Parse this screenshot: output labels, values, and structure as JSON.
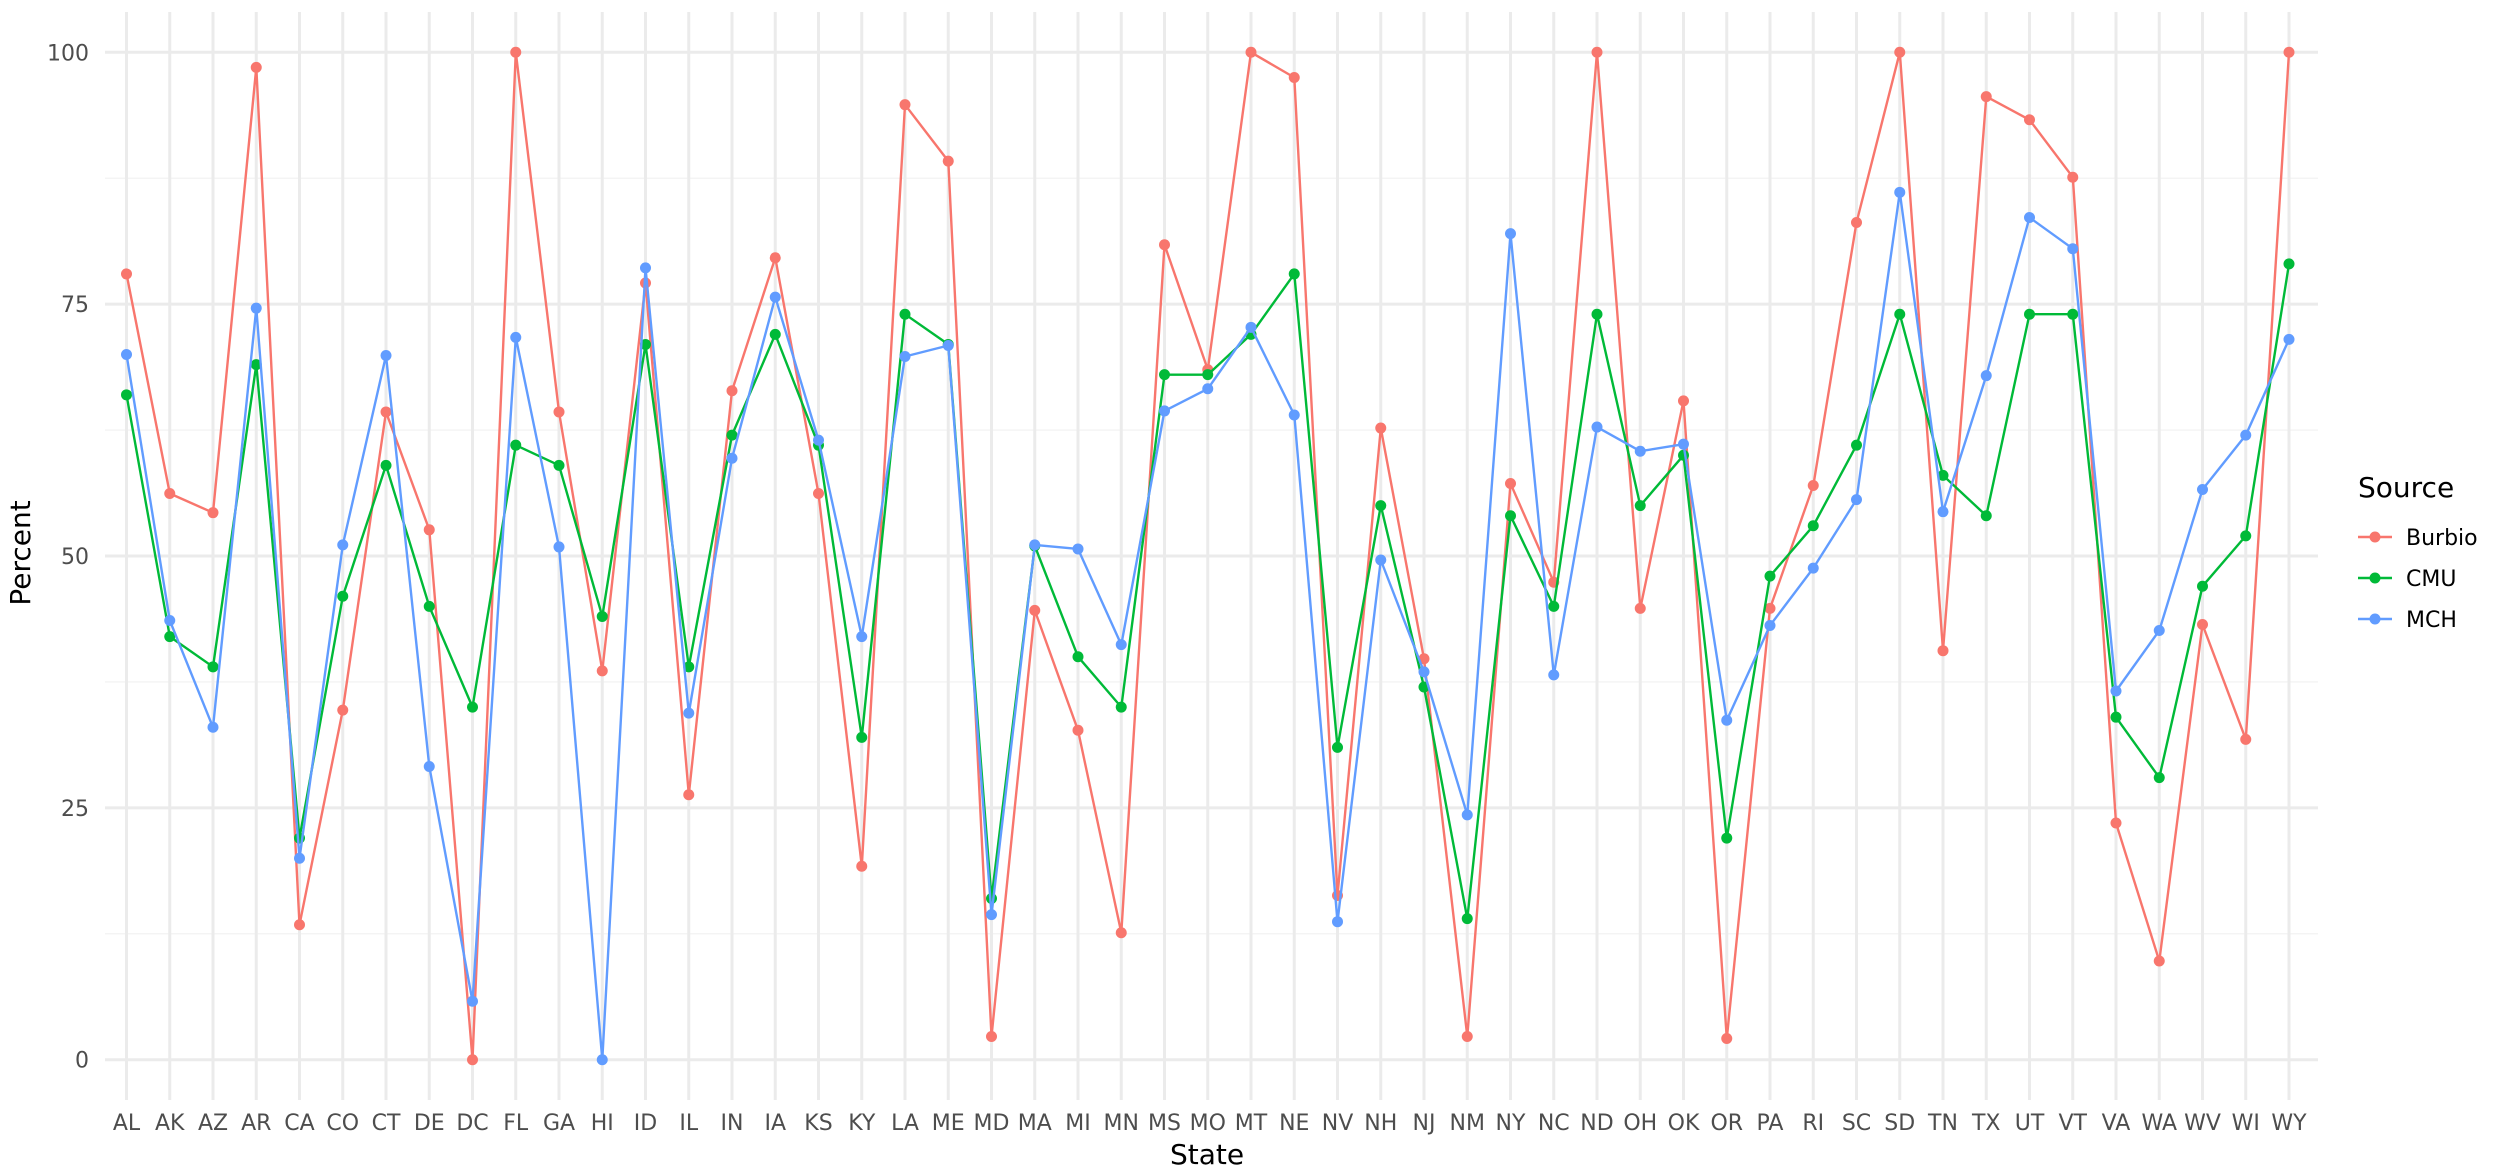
{
  "chart_data": {
    "type": "line",
    "xlabel": "State",
    "ylabel": "Percent",
    "ylim": [
      -4,
      104
    ],
    "y_ticks": [
      0,
      25,
      50,
      75,
      100
    ],
    "y_tick_labels": [
      "0",
      "25",
      "50",
      "75",
      "100"
    ],
    "grid": true,
    "legend_position": "right",
    "legend_title": "Source",
    "categories": [
      "AL",
      "AK",
      "AZ",
      "AR",
      "CA",
      "CO",
      "CT",
      "DE",
      "DC",
      "FL",
      "GA",
      "HI",
      "ID",
      "IL",
      "IN",
      "IA",
      "KS",
      "KY",
      "LA",
      "ME",
      "MD",
      "MA",
      "MI",
      "MN",
      "MS",
      "MO",
      "MT",
      "NE",
      "NV",
      "NH",
      "NJ",
      "NM",
      "NY",
      "NC",
      "ND",
      "OH",
      "OK",
      "OR",
      "PA",
      "RI",
      "SC",
      "SD",
      "TN",
      "TX",
      "UT",
      "VT",
      "VA",
      "WA",
      "WV",
      "WI",
      "WY"
    ],
    "series": [
      {
        "name": "Burbio",
        "color": "#F8766D",
        "values": [
          78,
          56.2,
          54.3,
          98.5,
          13.4,
          34.7,
          64.3,
          52.6,
          0,
          100,
          64.3,
          38.6,
          77.1,
          26.3,
          66.4,
          79.6,
          56.2,
          19.2,
          94.8,
          89.2,
          2.3,
          44.6,
          32.7,
          12.6,
          80.9,
          68.5,
          100,
          97.5,
          16.3,
          62.7,
          39.8,
          2.3,
          57.2,
          47.4,
          100,
          44.8,
          65.4,
          2.1,
          44.8,
          57,
          83.1,
          100,
          40.6,
          95.6,
          93.3,
          87.6,
          23.5,
          9.8,
          43.2,
          31.8,
          100
        ]
      },
      {
        "name": "CMU",
        "color": "#00BA38",
        "values": [
          66,
          42,
          39,
          69,
          22,
          46,
          59,
          45,
          35,
          61,
          59,
          44,
          71,
          39,
          62,
          72,
          61,
          32,
          74,
          71,
          16,
          51,
          40,
          35,
          68,
          68,
          72,
          78,
          31,
          55,
          37,
          14,
          54,
          45,
          74,
          55,
          60,
          22,
          48,
          53,
          61,
          74,
          58,
          54,
          74,
          74,
          34,
          28,
          47,
          52,
          79
        ]
      },
      {
        "name": "MCH",
        "color": "#619CFF",
        "values": [
          70,
          43.6,
          33,
          74.6,
          20,
          51.1,
          69.9,
          29.1,
          5.8,
          71.7,
          50.9,
          0,
          78.6,
          34.4,
          59.7,
          75.7,
          61.5,
          42,
          69.8,
          70.9,
          14.4,
          51.1,
          50.7,
          41.2,
          64.4,
          66.6,
          72.7,
          64,
          13.7,
          49.6,
          38.5,
          24.3,
          82,
          38.2,
          62.8,
          60.4,
          61.1,
          33.7,
          43.1,
          48.8,
          55.6,
          86.1,
          54.4,
          67.9,
          83.6,
          80.5,
          36.6,
          42.6,
          56.6,
          62,
          71.5
        ]
      }
    ]
  }
}
